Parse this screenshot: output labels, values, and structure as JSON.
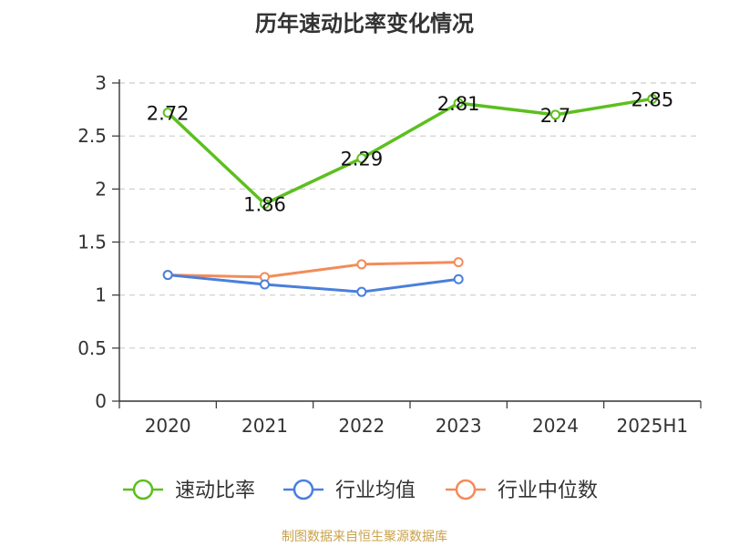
{
  "chart_data": {
    "type": "line",
    "title": "历年速动比率变化情况",
    "categories": [
      "2020",
      "2021",
      "2022",
      "2023",
      "2024",
      "2025H1"
    ],
    "y_ticks": [
      "0",
      "0.5",
      "1",
      "1.5",
      "2",
      "2.5",
      "3"
    ],
    "ylim": [
      0,
      3
    ],
    "grid": true,
    "legend_position": "bottom",
    "series": [
      {
        "name": "速动比率",
        "color": "#5cbf1f",
        "values": [
          2.72,
          1.86,
          2.29,
          2.81,
          2.7,
          2.85
        ],
        "labels": [
          "2.72",
          "1.86",
          "2.29",
          "2.81",
          "2.7",
          "2.85"
        ]
      },
      {
        "name": "行业均值",
        "color": "#4a7fdb",
        "values": [
          1.19,
          1.1,
          1.03,
          1.15,
          null,
          null
        ]
      },
      {
        "name": "行业中位数",
        "color": "#f28c5a",
        "values": [
          1.19,
          1.17,
          1.29,
          1.31,
          null,
          null
        ]
      }
    ]
  },
  "footer": {
    "source": "制图数据来自恒生聚源数据库"
  }
}
